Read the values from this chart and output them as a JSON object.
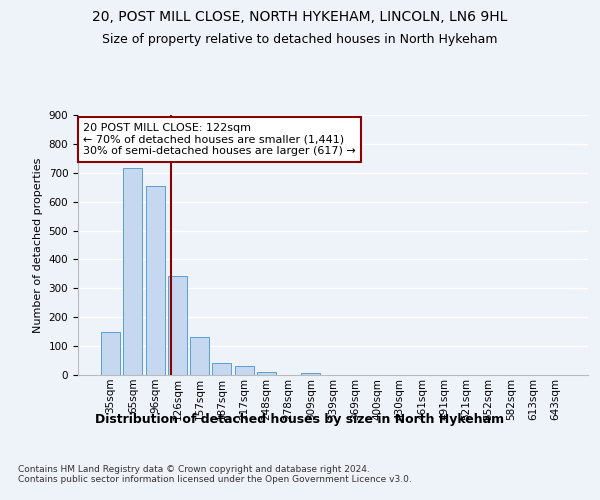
{
  "title1": "20, POST MILL CLOSE, NORTH HYKEHAM, LINCOLN, LN6 9HL",
  "title2": "Size of property relative to detached houses in North Hykeham",
  "xlabel": "Distribution of detached houses by size in North Hykeham",
  "ylabel": "Number of detached properties",
  "footnote": "Contains HM Land Registry data © Crown copyright and database right 2024.\nContains public sector information licensed under the Open Government Licence v3.0.",
  "bar_labels": [
    "35sqm",
    "65sqm",
    "96sqm",
    "126sqm",
    "157sqm",
    "187sqm",
    "217sqm",
    "248sqm",
    "278sqm",
    "309sqm",
    "339sqm",
    "369sqm",
    "400sqm",
    "430sqm",
    "461sqm",
    "491sqm",
    "521sqm",
    "552sqm",
    "582sqm",
    "613sqm",
    "643sqm"
  ],
  "bar_values": [
    150,
    715,
    655,
    343,
    130,
    40,
    30,
    12,
    0,
    8,
    0,
    0,
    0,
    0,
    0,
    0,
    0,
    0,
    0,
    0,
    0
  ],
  "bar_color": "#c5d8f0",
  "bar_edge_color": "#5a9fd4",
  "vline_x": 2.73,
  "vline_color": "#8b0000",
  "annotation_line1": "20 POST MILL CLOSE: 122sqm",
  "annotation_line2": "← 70% of detached houses are smaller (1,441)",
  "annotation_line3": "30% of semi-detached houses are larger (617) →",
  "annotation_box_color": "#ffffff",
  "annotation_box_edge": "#8b0000",
  "ylim": [
    0,
    900
  ],
  "yticks": [
    0,
    100,
    200,
    300,
    400,
    500,
    600,
    700,
    800,
    900
  ],
  "background_color": "#eef2f9",
  "grid_color": "#ffffff",
  "title1_fontsize": 10,
  "title2_fontsize": 9,
  "xlabel_fontsize": 9,
  "ylabel_fontsize": 8,
  "tick_fontsize": 7.5,
  "annotation_fontsize": 8,
  "footnote_fontsize": 6.5
}
